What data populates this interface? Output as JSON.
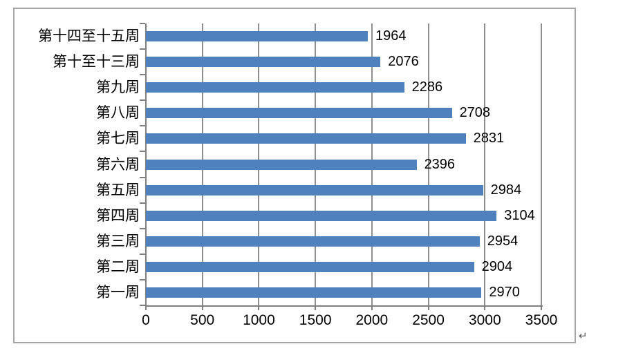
{
  "chart_data": {
    "type": "bar",
    "orientation": "horizontal",
    "title": "",
    "xlabel": "",
    "ylabel": "",
    "categories": [
      "第十四至十五周",
      "第十至十三周",
      "第九周",
      "第八周",
      "第七周",
      "第六周",
      "第五周",
      "第四周",
      "第三周",
      "第二周",
      "第一周"
    ],
    "values": [
      1964,
      2076,
      2286,
      2708,
      2831,
      2396,
      2984,
      3104,
      2954,
      2904,
      2970
    ],
    "value_labels": [
      "1964",
      "2076",
      "2286",
      "2708",
      "2831",
      "2396",
      "2984",
      "3104",
      "2954",
      "2904",
      "2970"
    ],
    "xlim": [
      0,
      3500
    ],
    "xticks": [
      0,
      500,
      1000,
      1500,
      2000,
      2500,
      3000,
      3500
    ],
    "grid": "vertical",
    "legend_position": "none",
    "data_labels_shown": true,
    "colors": {
      "bar": "#4f81bd",
      "gridline": "#8f8f8f",
      "axis": "#7f7f7f",
      "chart_border": "#a6a6a6",
      "text": "#000000",
      "background": "#ffffff"
    }
  },
  "page": {
    "return_mark": "↵"
  }
}
